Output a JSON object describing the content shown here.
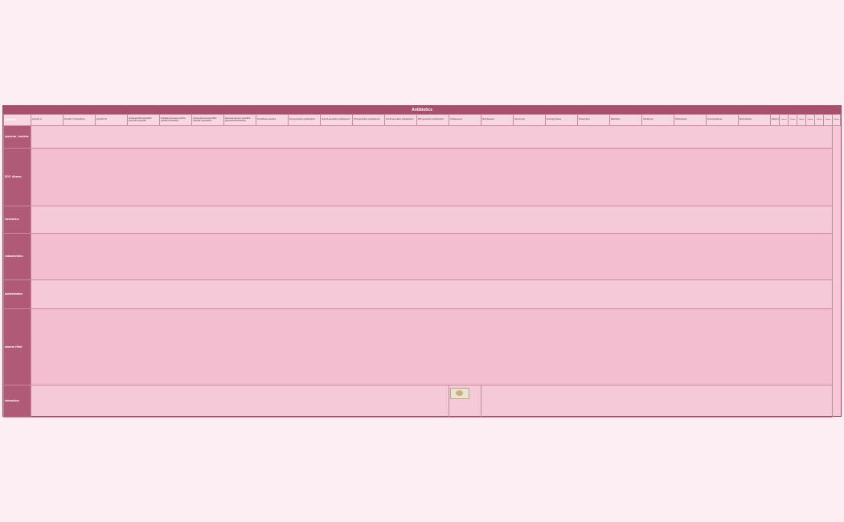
{
  "sheet": {
    "title": "Antibiotics"
  },
  "header_row": {
    "label": "Antibiotic",
    "cols": [
      "penicillin G",
      "Penicillin V (benzathine)",
      "penicillin VK",
      "aminopenicillins amoxicillin (ampicillin) ampicillin",
      "Antistaphylococcal penicillins (nafcillin dicloxacillin)",
      "Antipseudomonal penicillins (ticarcillin/ piperacillin)",
      "Extended spectrum penicillins (piperacillin/tazobactam)",
      "Penicillinase resistant",
      "First generation cephalosporin",
      "Second generation cephalosporin",
      "Third generation cephalosporin",
      "Fourth generation cephalosporin",
      "Fifth generation cephalosporin",
      "Carbapenems",
      "Monobactams",
      "Vancomycin",
      "Aminoglycosides",
      "Tetracyclines",
      "Macrolides",
      "Clindamycin",
      "Sulfonamides",
      "Fluoroquinolones",
      "Metronidazole",
      "Daptomycin",
      "Linezolid",
      "Chloramphenicol"
    ],
    "mini": [
      "Column",
      "Column",
      "Column",
      "Column",
      "Column",
      "Column",
      "Column"
    ]
  },
  "rows": [
    {
      "label": "spectrum - bacteria"
    },
    {
      "label": "DOC: disease"
    },
    {
      "label": "mechanism"
    },
    {
      "label": "characteristics"
    },
    {
      "label": "administration"
    },
    {
      "label": "adverse effect"
    },
    {
      "label": "interactions"
    }
  ]
}
